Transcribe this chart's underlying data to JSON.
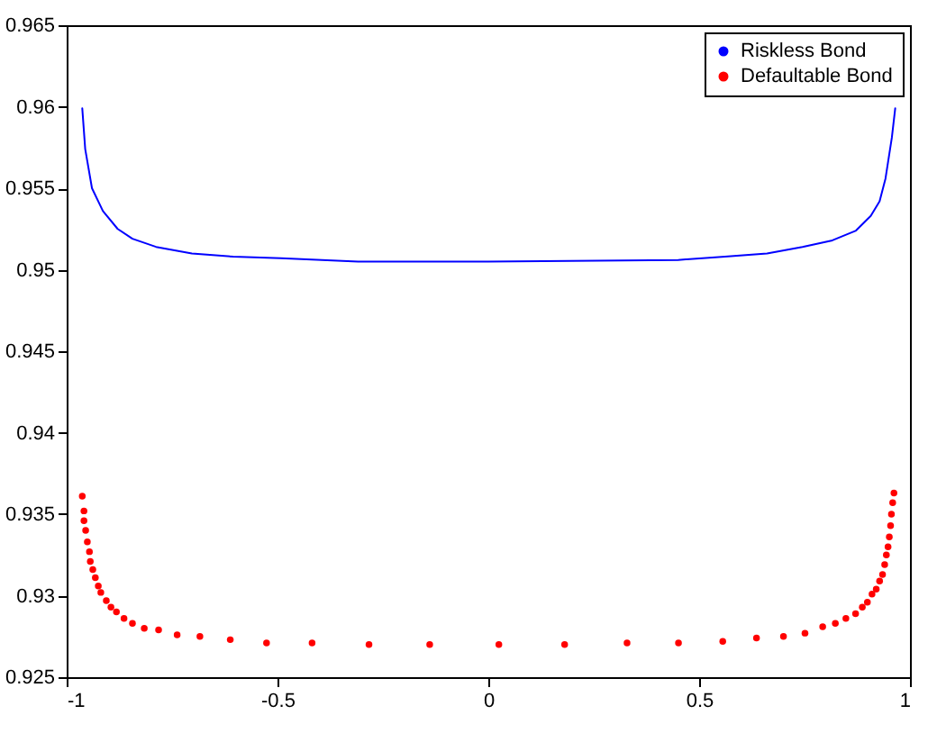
{
  "chart_data": {
    "type": "line",
    "xlim": [
      -1,
      1
    ],
    "xticks": [
      -1,
      -0.5,
      0,
      0.5,
      1
    ],
    "ylim": [
      0.925,
      0.965
    ],
    "yticks": [
      0.925,
      0.93,
      0.935,
      0.94,
      0.945,
      0.95,
      0.955,
      0.96,
      0.965
    ],
    "grid": false,
    "legend": "top right",
    "series": [
      {
        "name": "Riskless Bond",
        "color": "#0000ff",
        "marker": "none",
        "line_style": "solid",
        "x": [
          -0.963,
          -0.956,
          -0.94,
          -0.914,
          -0.879,
          -0.844,
          -0.788,
          -0.703,
          -0.605,
          -0.492,
          -0.309,
          0,
          0.45,
          0.561,
          0.661,
          0.745,
          0.816,
          0.872,
          0.907,
          0.928,
          0.942,
          0.957,
          0.965
        ],
        "values": [
          0.9599,
          0.9574,
          0.955,
          0.9536,
          0.9525,
          0.9519,
          0.9514,
          0.951,
          0.9508,
          0.9507,
          0.9505,
          0.9505,
          0.9506,
          0.9508,
          0.951,
          0.9514,
          0.9518,
          0.9524,
          0.9533,
          0.9542,
          0.9556,
          0.9581,
          0.9599
        ]
      },
      {
        "name": "Defaultable Bond",
        "type": "scatter",
        "color": "#ff0000",
        "marker": "circle",
        "x": [
          -0.963,
          -0.959,
          -0.959,
          -0.955,
          -0.951,
          -0.946,
          -0.944,
          -0.938,
          -0.932,
          -0.925,
          -0.919,
          -0.906,
          -0.895,
          -0.882,
          -0.864,
          -0.844,
          -0.816,
          -0.782,
          -0.738,
          -0.684,
          -0.612,
          -0.526,
          -0.418,
          -0.283,
          -0.139,
          0.025,
          0.181,
          0.329,
          0.451,
          0.556,
          0.636,
          0.7,
          0.751,
          0.793,
          0.823,
          0.848,
          0.871,
          0.887,
          0.899,
          0.91,
          0.92,
          0.928,
          0.935,
          0.94,
          0.944,
          0.948,
          0.951,
          0.954,
          0.956,
          0.959,
          0.962
        ],
        "values": [
          0.9361,
          0.9352,
          0.9346,
          0.934,
          0.9333,
          0.9327,
          0.9321,
          0.9316,
          0.9311,
          0.9306,
          0.9302,
          0.9297,
          0.9293,
          0.929,
          0.9286,
          0.9283,
          0.928,
          0.9279,
          0.9276,
          0.9275,
          0.9273,
          0.9271,
          0.9271,
          0.927,
          0.927,
          0.927,
          0.927,
          0.9271,
          0.9271,
          0.9272,
          0.9274,
          0.9275,
          0.9277,
          0.9281,
          0.9283,
          0.9286,
          0.9289,
          0.9293,
          0.9296,
          0.9301,
          0.9304,
          0.9309,
          0.9313,
          0.9319,
          0.9325,
          0.933,
          0.9336,
          0.9343,
          0.935,
          0.9357,
          0.9363
        ]
      }
    ]
  }
}
